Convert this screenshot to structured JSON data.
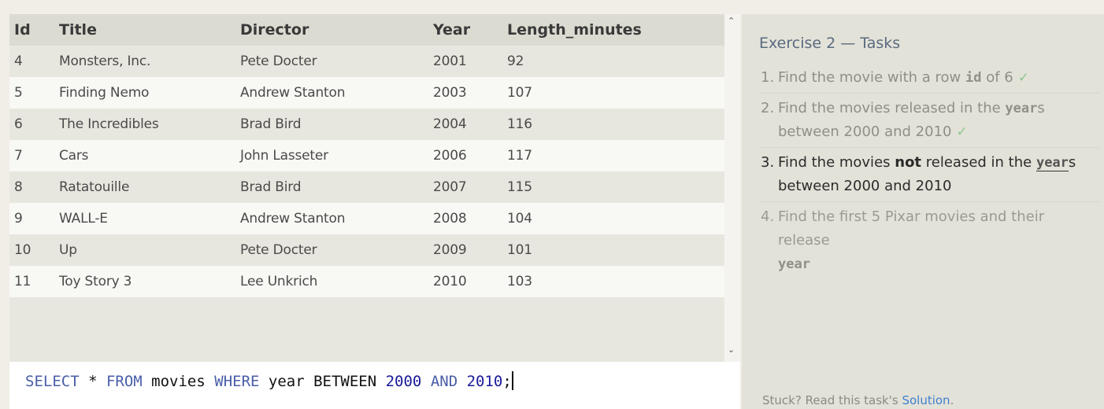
{
  "results": {
    "columns": [
      "Id",
      "Title",
      "Director",
      "Year",
      "Length_minutes"
    ],
    "rows": [
      [
        "4",
        "Monsters, Inc.",
        "Pete Docter",
        "2001",
        "92"
      ],
      [
        "5",
        "Finding Nemo",
        "Andrew Stanton",
        "2003",
        "107"
      ],
      [
        "6",
        "The Incredibles",
        "Brad Bird",
        "2004",
        "116"
      ],
      [
        "7",
        "Cars",
        "John Lasseter",
        "2006",
        "117"
      ],
      [
        "8",
        "Ratatouille",
        "Brad Bird",
        "2007",
        "115"
      ],
      [
        "9",
        "WALL-E",
        "Andrew Stanton",
        "2008",
        "104"
      ],
      [
        "10",
        "Up",
        "Pete Docter",
        "2009",
        "101"
      ],
      [
        "11",
        "Toy Story 3",
        "Lee Unkrich",
        "2010",
        "103"
      ]
    ],
    "scroll_up_icon": "chevron-up-icon",
    "scroll_down_icon": "chevron-down-icon"
  },
  "editor": {
    "kw_select": "SELECT",
    "star": " * ",
    "kw_from": "FROM",
    "table": " movies ",
    "kw_where": "WHERE",
    "cond": " year BETWEEN ",
    "num1": "2000",
    "kw_and": " AND ",
    "num2": "2010",
    "end": ";"
  },
  "tasks_panel": {
    "title": "Exercise 2 — Tasks",
    "tasks": [
      {
        "num": "1.",
        "pre": "Find the movie with a row ",
        "code": "id",
        "post": " of 6",
        "check": "✓"
      },
      {
        "num": "2.",
        "pre": "Find the movies released in the ",
        "code": "year",
        "post": "s between 2000 and 2010",
        "check": "✓"
      },
      {
        "num": "3.",
        "pre": "Find the movies ",
        "bold": "not",
        "mid": " released in the ",
        "code": "year",
        "post": "s between 2000 and 2010"
      },
      {
        "num": "4.",
        "pre": "Find the first 5 Pixar movies and their release ",
        "code": "year"
      }
    ],
    "stuck_text": "Stuck? Read this task's ",
    "solution_link": "Solution",
    "stuck_end": "."
  },
  "colors": {
    "keyword": "#4a5ea8",
    "number": "#1a1a9c",
    "link": "#3f7fd0",
    "check": "#8fc78f"
  }
}
